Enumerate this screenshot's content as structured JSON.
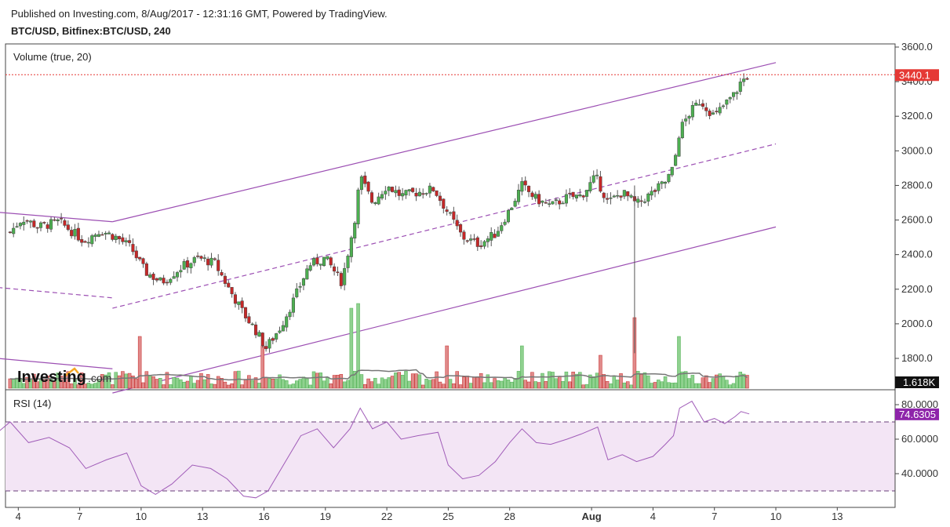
{
  "header": {
    "published": "Published on Investing.com, 8/Aug/2017 - 12:31:16 GMT, Powered by TradingView.",
    "symbol": "BTC/USD, Bitfinex:BTC/USD, 240"
  },
  "indicators": {
    "volume_label": "Volume (true, 20)",
    "rsi_label": "RSI (14)",
    "rsi_value": "74.6305",
    "volume_value": "1.618K",
    "price_value": "3440.1"
  },
  "logo": {
    "brand": "Investing",
    "suffix": ".com"
  },
  "colors": {
    "up": "#4caf50",
    "down": "#c62828",
    "channel": "#9c4fb3",
    "rsi": "#a05cb8",
    "rsi_band": "#f3e5f5",
    "price_marker": "#e53935",
    "vol_ma": "#777777"
  },
  "chart_data": [
    {
      "type": "candlestick",
      "title": "BTC/USD, Bitfinex:BTC/USD, 240",
      "x_tick_labels": [
        "4",
        "7",
        "10",
        "13",
        "16",
        "19",
        "22",
        "25",
        "28",
        "Aug",
        "4",
        "7",
        "10",
        "13"
      ],
      "y_tick_labels": [
        "3600.0",
        "3400.0",
        "3200.0",
        "3000.0",
        "2800.0",
        "2600.0",
        "2400.0",
        "2200.0",
        "2000.0",
        "1800.0"
      ],
      "ylim": [
        1640,
        3600
      ],
      "last_price": 3440.1,
      "close_path": [
        {
          "day": 3.6,
          "close": 2530
        },
        {
          "day": 4.2,
          "close": 2610
        },
        {
          "day": 5.0,
          "close": 2560
        },
        {
          "day": 6.0,
          "close": 2590
        },
        {
          "day": 7.2,
          "close": 2480
        },
        {
          "day": 8.0,
          "close": 2540
        },
        {
          "day": 8.8,
          "close": 2500
        },
        {
          "day": 9.5,
          "close": 2440
        },
        {
          "day": 10.2,
          "close": 2300
        },
        {
          "day": 11.0,
          "close": 2240
        },
        {
          "day": 12.0,
          "close": 2330
        },
        {
          "day": 12.8,
          "close": 2380
        },
        {
          "day": 13.6,
          "close": 2350
        },
        {
          "day": 14.3,
          "close": 2200
        },
        {
          "day": 15.0,
          "close": 2060
        },
        {
          "day": 15.6,
          "close": 1960
        },
        {
          "day": 16.1,
          "close": 1860
        },
        {
          "day": 16.8,
          "close": 1980
        },
        {
          "day": 17.5,
          "close": 2150
        },
        {
          "day": 18.2,
          "close": 2340
        },
        {
          "day": 19.0,
          "close": 2380
        },
        {
          "day": 19.8,
          "close": 2240
        },
        {
          "day": 20.4,
          "close": 2580
        },
        {
          "day": 20.7,
          "close": 2850
        },
        {
          "day": 21.3,
          "close": 2700
        },
        {
          "day": 22.0,
          "close": 2800
        },
        {
          "day": 22.7,
          "close": 2740
        },
        {
          "day": 23.5,
          "close": 2760
        },
        {
          "day": 24.3,
          "close": 2780
        },
        {
          "day": 25.0,
          "close": 2640
        },
        {
          "day": 25.7,
          "close": 2500
        },
        {
          "day": 26.5,
          "close": 2460
        },
        {
          "day": 27.3,
          "close": 2520
        },
        {
          "day": 28.0,
          "close": 2660
        },
        {
          "day": 28.6,
          "close": 2800
        },
        {
          "day": 29.3,
          "close": 2720
        },
        {
          "day": 30.0,
          "close": 2680
        },
        {
          "day": 30.8,
          "close": 2730
        },
        {
          "day": 31.5,
          "close": 2740
        },
        {
          "day": 32.2,
          "close": 2850
        },
        {
          "day": 32.8,
          "close": 2700
        },
        {
          "day": 33.5,
          "close": 2760
        },
        {
          "day": 34.2,
          "close": 2690
        },
        {
          "day": 35.0,
          "close": 2760
        },
        {
          "day": 35.6,
          "close": 2820
        },
        {
          "day": 36.0,
          "close": 2900
        },
        {
          "day": 36.3,
          "close": 3120
        },
        {
          "day": 36.8,
          "close": 3220
        },
        {
          "day": 37.3,
          "close": 3290
        },
        {
          "day": 38.0,
          "close": 3200
        },
        {
          "day": 38.6,
          "close": 3280
        },
        {
          "day": 39.0,
          "close": 3330
        },
        {
          "day": 39.3,
          "close": 3400
        },
        {
          "day": 39.7,
          "close": 3440.1
        }
      ],
      "channel": {
        "upper": [
          {
            "day": 8.6,
            "price": 2590
          },
          {
            "day": 41.0,
            "price": 3510
          }
        ],
        "middle": [
          {
            "day": 8.6,
            "price": 2090
          },
          {
            "day": 41.0,
            "price": 3040
          }
        ],
        "lower": [
          {
            "day": 8.6,
            "price": 1600
          },
          {
            "day": 41.0,
            "price": 2560
          }
        ],
        "prior_upper": [
          {
            "day": 3.0,
            "price": 2645
          },
          {
            "day": 8.6,
            "price": 2590
          }
        ],
        "prior_middle": [
          {
            "day": 3.0,
            "price": 2210
          },
          {
            "day": 8.6,
            "price": 2150
          }
        ],
        "prior_lower": [
          {
            "day": 3.0,
            "price": 1800
          },
          {
            "day": 8.6,
            "price": 1740
          }
        ]
      }
    },
    {
      "type": "bar",
      "title": "Volume (true, 20)",
      "last_value": "1.618K",
      "volume_spikes": [
        {
          "day": 10.0,
          "level": 0.55
        },
        {
          "day": 16.0,
          "level": 0.45
        },
        {
          "day": 20.3,
          "level": 0.85
        },
        {
          "day": 20.6,
          "level": 0.9
        },
        {
          "day": 25.0,
          "level": 0.45
        },
        {
          "day": 28.6,
          "level": 0.45
        },
        {
          "day": 32.5,
          "level": 0.35
        },
        {
          "day": 34.1,
          "level": 0.75
        },
        {
          "day": 36.2,
          "level": 0.55
        },
        {
          "day": 39.5,
          "level": 0.15
        }
      ]
    },
    {
      "type": "line",
      "title": "RSI (14)",
      "y_tick_labels": [
        "80.0000",
        "60.0000",
        "40.0000"
      ],
      "ylim": [
        22,
        86
      ],
      "upper_band": 70,
      "lower_band": 30,
      "last_value": 74.6305,
      "points": [
        {
          "day": 3.0,
          "rsi": 64
        },
        {
          "day": 3.6,
          "rsi": 70
        },
        {
          "day": 4.5,
          "rsi": 58
        },
        {
          "day": 5.5,
          "rsi": 61
        },
        {
          "day": 6.5,
          "rsi": 55
        },
        {
          "day": 7.3,
          "rsi": 43
        },
        {
          "day": 8.3,
          "rsi": 48
        },
        {
          "day": 9.3,
          "rsi": 52
        },
        {
          "day": 10.0,
          "rsi": 33
        },
        {
          "day": 10.7,
          "rsi": 28
        },
        {
          "day": 11.5,
          "rsi": 34
        },
        {
          "day": 12.5,
          "rsi": 45
        },
        {
          "day": 13.4,
          "rsi": 43
        },
        {
          "day": 14.2,
          "rsi": 37
        },
        {
          "day": 15.0,
          "rsi": 27
        },
        {
          "day": 15.6,
          "rsi": 26
        },
        {
          "day": 16.2,
          "rsi": 30
        },
        {
          "day": 17.0,
          "rsi": 46
        },
        {
          "day": 17.8,
          "rsi": 62
        },
        {
          "day": 18.6,
          "rsi": 66
        },
        {
          "day": 19.4,
          "rsi": 55
        },
        {
          "day": 20.2,
          "rsi": 66
        },
        {
          "day": 20.7,
          "rsi": 78
        },
        {
          "day": 21.3,
          "rsi": 66
        },
        {
          "day": 22.0,
          "rsi": 70
        },
        {
          "day": 22.7,
          "rsi": 60
        },
        {
          "day": 23.5,
          "rsi": 62
        },
        {
          "day": 24.5,
          "rsi": 64
        },
        {
          "day": 25.0,
          "rsi": 45
        },
        {
          "day": 25.7,
          "rsi": 37
        },
        {
          "day": 26.5,
          "rsi": 39
        },
        {
          "day": 27.3,
          "rsi": 47
        },
        {
          "day": 28.0,
          "rsi": 58
        },
        {
          "day": 28.6,
          "rsi": 66
        },
        {
          "day": 29.3,
          "rsi": 58
        },
        {
          "day": 30.0,
          "rsi": 57
        },
        {
          "day": 30.8,
          "rsi": 60
        },
        {
          "day": 31.5,
          "rsi": 63
        },
        {
          "day": 32.3,
          "rsi": 67
        },
        {
          "day": 32.8,
          "rsi": 48
        },
        {
          "day": 33.5,
          "rsi": 51
        },
        {
          "day": 34.2,
          "rsi": 47
        },
        {
          "day": 35.0,
          "rsi": 50
        },
        {
          "day": 35.6,
          "rsi": 57
        },
        {
          "day": 36.0,
          "rsi": 62
        },
        {
          "day": 36.3,
          "rsi": 78
        },
        {
          "day": 36.9,
          "rsi": 82
        },
        {
          "day": 37.5,
          "rsi": 70
        },
        {
          "day": 38.0,
          "rsi": 72
        },
        {
          "day": 38.5,
          "rsi": 69
        },
        {
          "day": 39.0,
          "rsi": 73
        },
        {
          "day": 39.3,
          "rsi": 76
        },
        {
          "day": 39.7,
          "rsi": 74.6305
        }
      ]
    }
  ]
}
